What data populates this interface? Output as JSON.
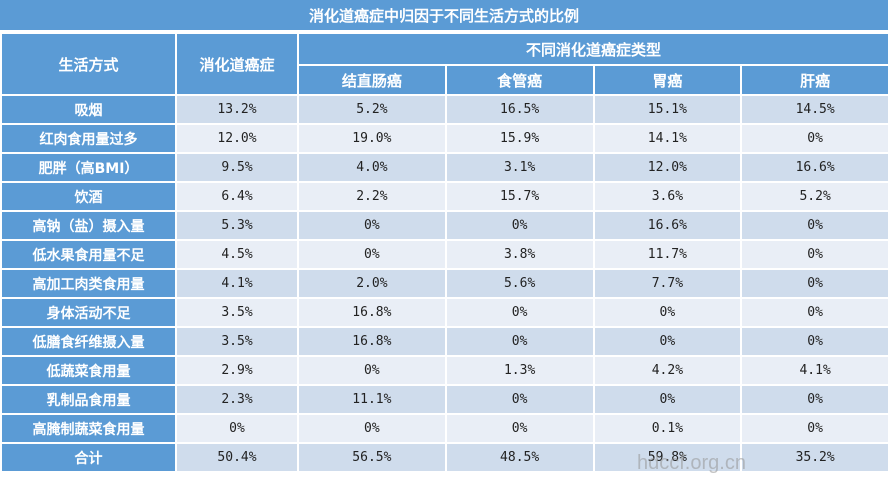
{
  "title": "消化道癌症中归因于不同生活方式的比例",
  "header": {
    "lifestyle": "生活方式",
    "overall": "消化道癌症",
    "group": "不同消化道癌症类型",
    "types": [
      "结直肠癌",
      "食管癌",
      "胃癌",
      "肝癌"
    ]
  },
  "rows": [
    {
      "label": "吸烟",
      "values": [
        "13.2%",
        "5.2%",
        "16.5%",
        "15.1%",
        "14.5%"
      ]
    },
    {
      "label": "红肉食用量过多",
      "values": [
        "12.0%",
        "19.0%",
        "15.9%",
        "14.1%",
        "0%"
      ]
    },
    {
      "label": "肥胖（高BMI）",
      "values": [
        "9.5%",
        "4.0%",
        "3.1%",
        "12.0%",
        "16.6%"
      ]
    },
    {
      "label": "饮酒",
      "values": [
        "6.4%",
        "2.2%",
        "15.7%",
        "3.6%",
        "5.2%"
      ]
    },
    {
      "label": "高钠（盐）摄入量",
      "values": [
        "5.3%",
        "0%",
        "0%",
        "16.6%",
        "0%"
      ]
    },
    {
      "label": "低水果食用量不足",
      "values": [
        "4.5%",
        "0%",
        "3.8%",
        "11.7%",
        "0%"
      ]
    },
    {
      "label": "高加工肉类食用量",
      "values": [
        "4.1%",
        "2.0%",
        "5.6%",
        "7.7%",
        "0%"
      ]
    },
    {
      "label": "身体活动不足",
      "values": [
        "3.5%",
        "16.8%",
        "0%",
        "0%",
        "0%"
      ]
    },
    {
      "label": "低膳食纤维摄入量",
      "values": [
        "3.5%",
        "16.8%",
        "0%",
        "0%",
        "0%"
      ]
    },
    {
      "label": "低蔬菜食用量",
      "values": [
        "2.9%",
        "0%",
        "1.3%",
        "4.2%",
        "4.1%"
      ]
    },
    {
      "label": "乳制品食用量",
      "values": [
        "2.3%",
        "11.1%",
        "0%",
        "0%",
        "0%"
      ]
    },
    {
      "label": "高腌制蔬菜食用量",
      "values": [
        "0%",
        "0%",
        "0%",
        "0.1%",
        "0%"
      ]
    },
    {
      "label": "合计",
      "values": [
        "50.4%",
        "56.5%",
        "48.5%",
        "59.8%",
        "35.2%"
      ]
    }
  ],
  "watermark": "hdccf.org.cn",
  "colors": {
    "header_blue": "#5b9bd5",
    "row_odd": "#cfdcec",
    "row_even": "#e9eef6"
  }
}
